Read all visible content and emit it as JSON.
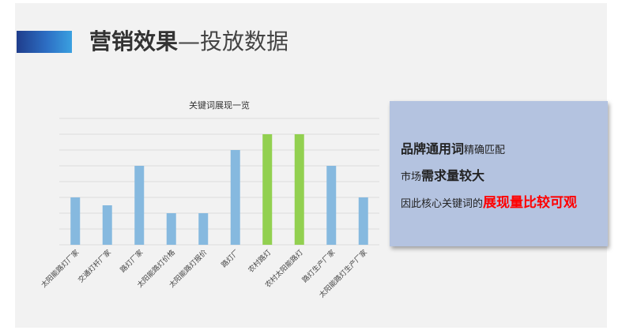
{
  "header": {
    "title_strong": "营销效果",
    "title_light": "—投放数据"
  },
  "chart_data": {
    "type": "bar",
    "title": "关键词展现一览",
    "categories": [
      "太阳能路灯厂家",
      "交通灯杆厂家",
      "路灯厂家",
      "太阳能路灯价格",
      "太阳能路灯报价",
      "路灯厂",
      "农村路灯",
      "农村太阳能路灯",
      "路灯生产厂家",
      "太阳能路灯生产厂家"
    ],
    "values": [
      3,
      2.5,
      5,
      2,
      2,
      6,
      7,
      7,
      5,
      3
    ],
    "highlight": [
      false,
      false,
      false,
      false,
      false,
      false,
      true,
      true,
      false,
      false
    ],
    "ylim": [
      0,
      8
    ],
    "grid": true,
    "colors": {
      "bar": "#86b9df",
      "highlight": "#92d050",
      "grid": "#dcdcdc"
    }
  },
  "info": {
    "line1_big": "品牌通用词",
    "line1_small": "精确匹配",
    "line2_small": "市场",
    "line2_big": "需求量较大",
    "line3_small": "因此核心关键词的",
    "line3_big": "展现量比较可观"
  }
}
